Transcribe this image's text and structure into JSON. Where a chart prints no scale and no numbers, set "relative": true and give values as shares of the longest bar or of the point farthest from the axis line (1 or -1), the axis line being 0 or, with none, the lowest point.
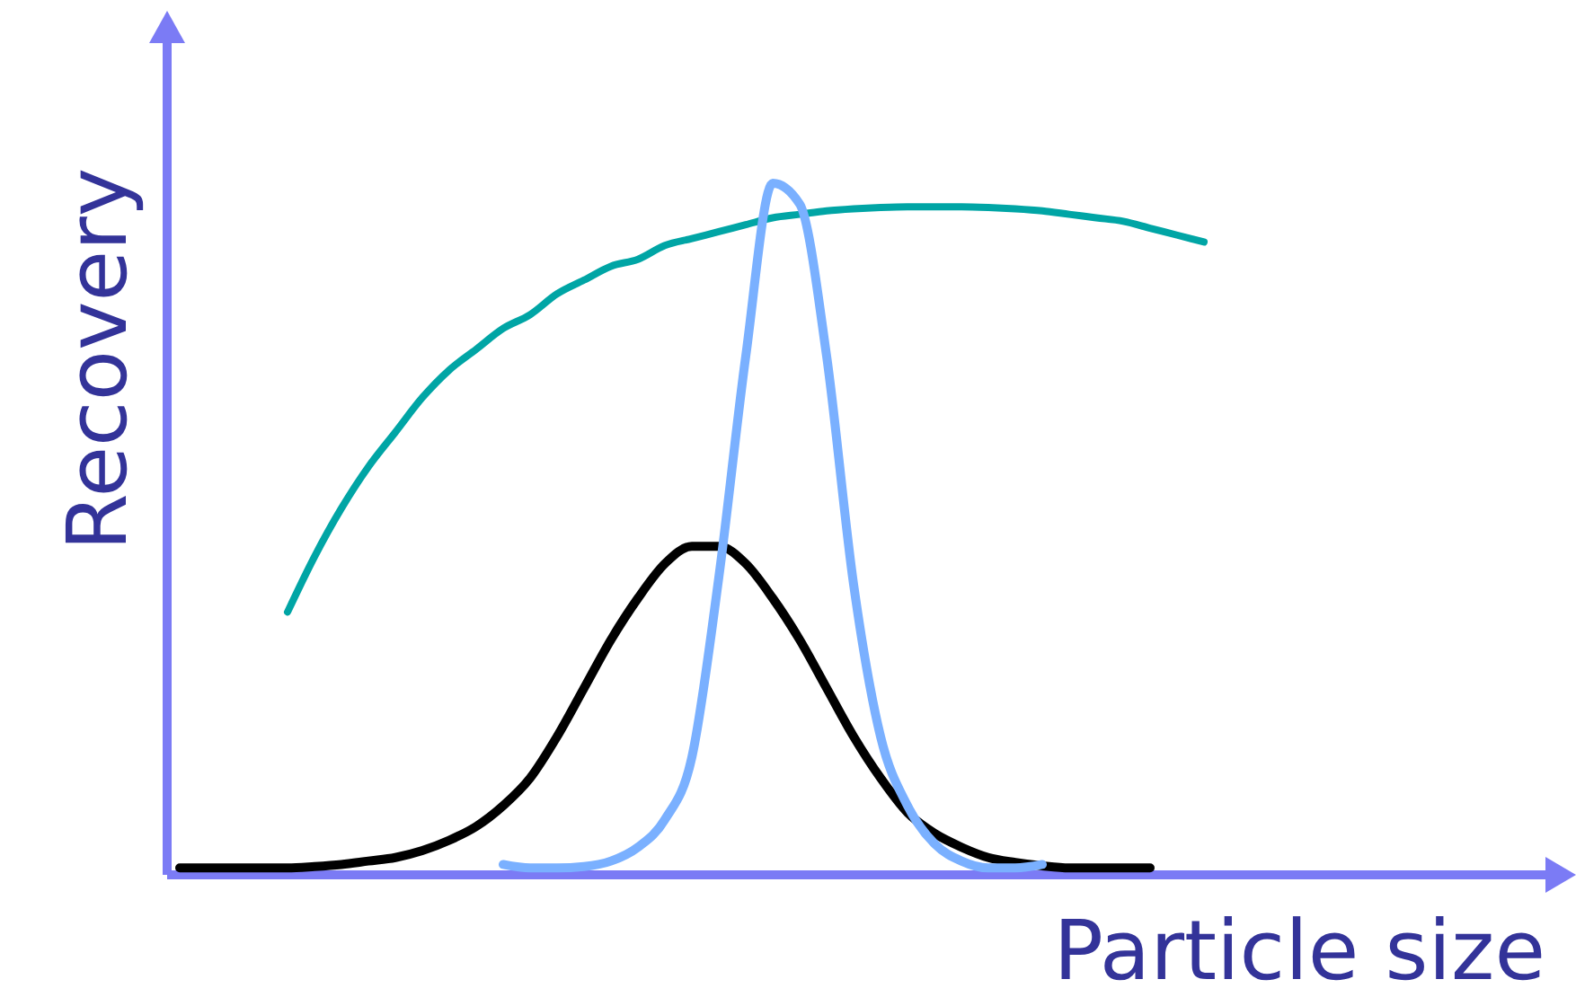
{
  "chart_data": {
    "type": "line",
    "relative": true,
    "xlabel": "Particle size",
    "ylabel": "Recovery",
    "categories": [
      null,
      null,
      null,
      null,
      null,
      null,
      null,
      null,
      null,
      null,
      null,
      null,
      null,
      null,
      null,
      null,
      null,
      null,
      null,
      null,
      null,
      null,
      null,
      null,
      null,
      null,
      null,
      null,
      null,
      null,
      null,
      null,
      null,
      null,
      null,
      null,
      null,
      null,
      null,
      null
    ],
    "series": [
      {
        "color": "#00a5a5",
        "values": [
          null,
          null,
          null,
          null,
          0.38,
          0.46,
          0.53,
          0.59,
          0.64,
          0.69,
          0.73,
          0.76,
          0.79,
          0.81,
          0.84,
          0.86,
          0.88,
          0.89,
          0.91,
          0.92,
          0.93,
          0.94,
          0.95,
          0.955,
          0.96,
          0.963,
          0.965,
          0.966,
          0.966,
          0.966,
          0.965,
          0.963,
          0.96,
          0.955,
          0.95,
          0.945,
          0.935,
          0.925,
          0.915,
          null
        ]
      },
      {
        "color": "#000000",
        "values": [
          0.01,
          0.01,
          0.01,
          0.01,
          0.01,
          0.012,
          0.015,
          0.02,
          0.025,
          0.035,
          0.05,
          0.07,
          0.1,
          0.14,
          0.2,
          0.27,
          0.34,
          0.4,
          0.45,
          0.475,
          0.475,
          0.45,
          0.4,
          0.34,
          0.27,
          0.2,
          0.14,
          0.09,
          0.06,
          0.04,
          0.025,
          0.018,
          0.013,
          0.01,
          0.01,
          0.01,
          0.01,
          null,
          null,
          null
        ]
      },
      {
        "color": "#7ab0ff",
        "values": [
          null,
          null,
          null,
          null,
          null,
          null,
          null,
          null,
          null,
          null,
          null,
          null,
          0.015,
          0.01,
          0.01,
          0.012,
          0.02,
          0.04,
          0.08,
          0.17,
          0.43,
          0.75,
          1.0,
          0.97,
          0.75,
          0.42,
          0.2,
          0.1,
          0.045,
          0.02,
          0.01,
          0.01,
          0.015,
          null,
          null,
          null,
          null,
          null,
          null,
          null
        ]
      }
    ]
  }
}
